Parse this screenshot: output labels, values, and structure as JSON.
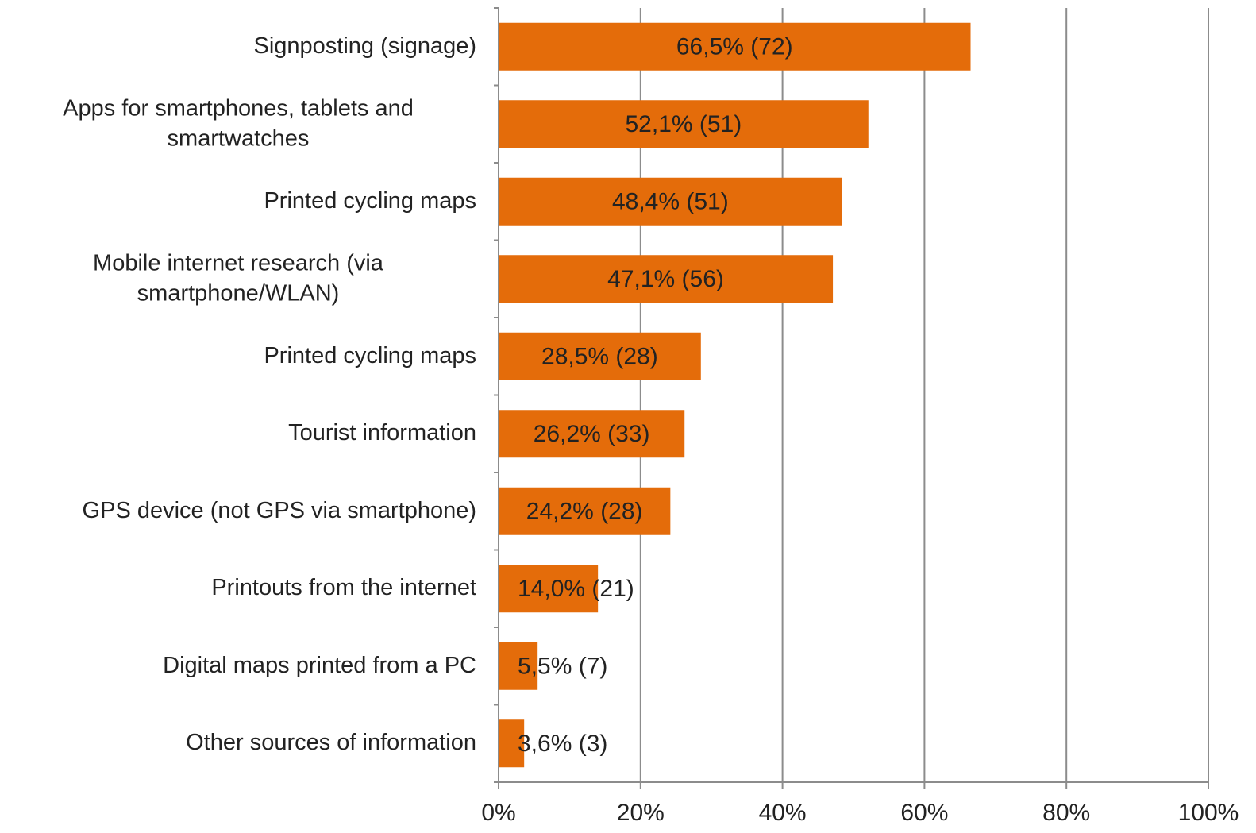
{
  "chart_data": {
    "type": "hbar",
    "categories": [
      "Signposting (signage)",
      "Apps for smartphones, tablets and smartwatches",
      "Printed cycling maps",
      "Mobile internet research (via smartphone/WLAN)",
      "Printed cycling maps",
      "Tourist information",
      "GPS device (not GPS via smartphone)",
      "Printouts from the internet",
      "Digital maps printed from a PC",
      "Other sources of information"
    ],
    "values": [
      66.5,
      52.1,
      48.4,
      47.1,
      28.5,
      26.2,
      24.2,
      14.0,
      5.5,
      3.6
    ],
    "value_labels": [
      "66,5% (72)",
      "52,1% (51)",
      "48,4% (51)",
      "47,1% (56)",
      "28,5% (28)",
      "26,2% (33)",
      "24,2% (28)",
      "14,0% (21)",
      "5,5% (7)",
      "3,6% (3)"
    ],
    "color": "#e46c0a",
    "xlim": [
      0,
      100
    ],
    "xticks": [
      {
        "value": 0,
        "label": "0%"
      },
      {
        "value": 20,
        "label": "20%"
      },
      {
        "value": 40,
        "label": "40%"
      },
      {
        "value": 60,
        "label": "60%"
      },
      {
        "value": 80,
        "label": "80%"
      },
      {
        "value": 100,
        "label": "100%"
      }
    ],
    "grid": true
  }
}
